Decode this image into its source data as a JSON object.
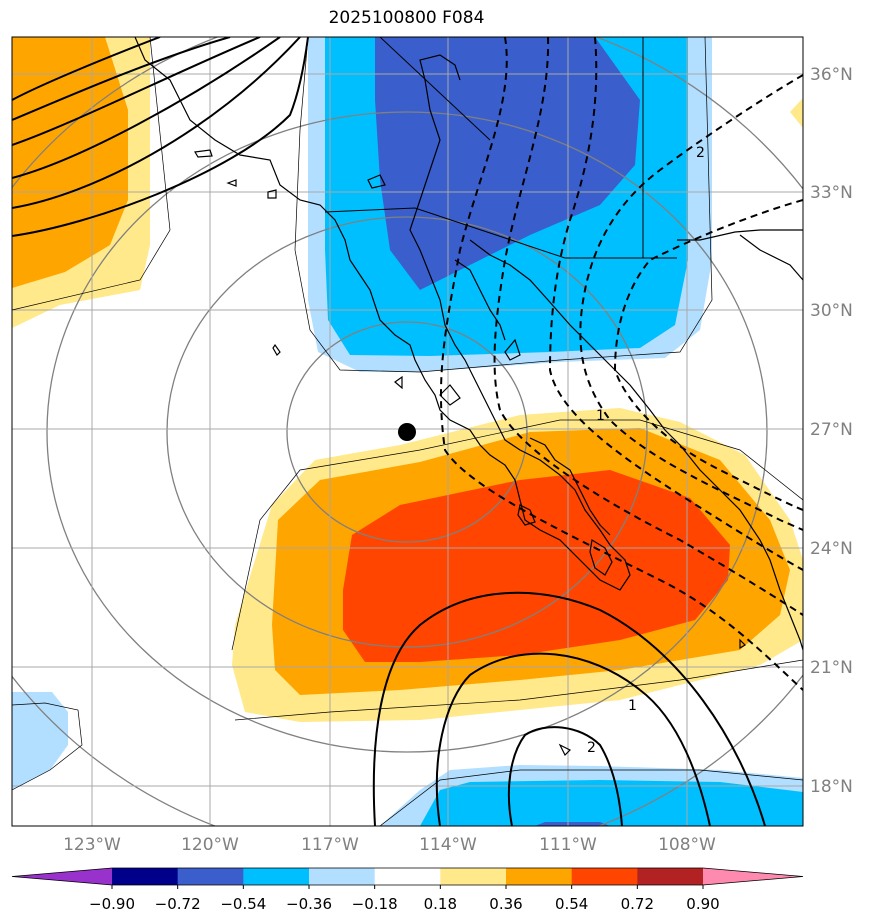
{
  "title": "2025100800 F084",
  "lat_ticks": [
    "36°N",
    "33°N",
    "30°N",
    "27°N",
    "24°N",
    "21°N",
    "18°N"
  ],
  "lon_ticks": [
    "123°W",
    "120°W",
    "117°W",
    "114°W",
    "111°W",
    "108°W"
  ],
  "colorbar": {
    "ticks": [
      "−0.90",
      "−0.72",
      "−0.54",
      "−0.36",
      "−0.18",
      "0.18",
      "0.36",
      "0.54",
      "0.72",
      "0.90"
    ],
    "colors": [
      "#9932cc",
      "#00008b",
      "#3a5fcd",
      "#00bfff",
      "#b2dfff",
      "#ffffff",
      "#ffe98a",
      "#ffa500",
      "#ff4500",
      "#b22222",
      "#ff8ab0"
    ]
  },
  "contour_labels": [
    "2",
    "1",
    "1",
    "2"
  ],
  "colors": {
    "grid": "#a8a8a8",
    "tick_label": "#808080",
    "ring": "#808080"
  },
  "marker": "storm-center-dot"
}
